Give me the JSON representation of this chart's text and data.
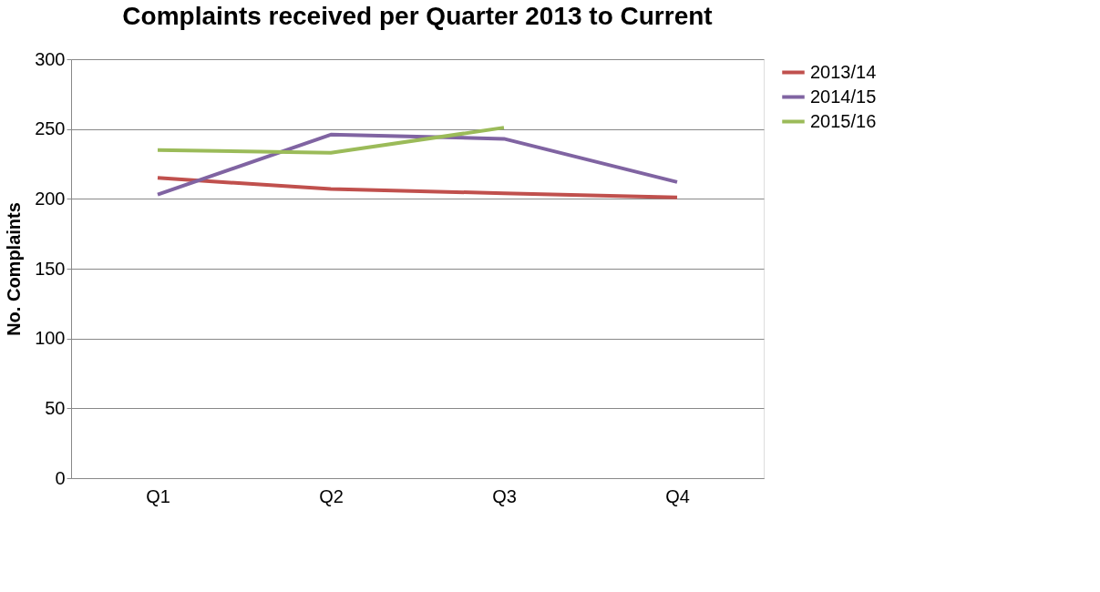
{
  "chart_data": {
    "type": "line",
    "title": "Complaints received per Quarter 2013 to Current",
    "ylabel": "No. Complaints",
    "categories": [
      "Q1",
      "Q2",
      "Q3",
      "Q4"
    ],
    "series": [
      {
        "name": "2013/14",
        "color": "#c0504d",
        "values": [
          215,
          207,
          204,
          201
        ]
      },
      {
        "name": "2014/15",
        "color": "#8064a2",
        "values": [
          203,
          246,
          243,
          212
        ]
      },
      {
        "name": "2015/16",
        "color": "#9bbb59",
        "values": [
          235,
          233,
          251,
          null
        ]
      }
    ],
    "ylim": [
      0,
      300
    ],
    "yticks": [
      0,
      50,
      100,
      150,
      200,
      250,
      300
    ],
    "grid": "y",
    "legend": "right",
    "marker": "none",
    "line_style": "solid"
  }
}
